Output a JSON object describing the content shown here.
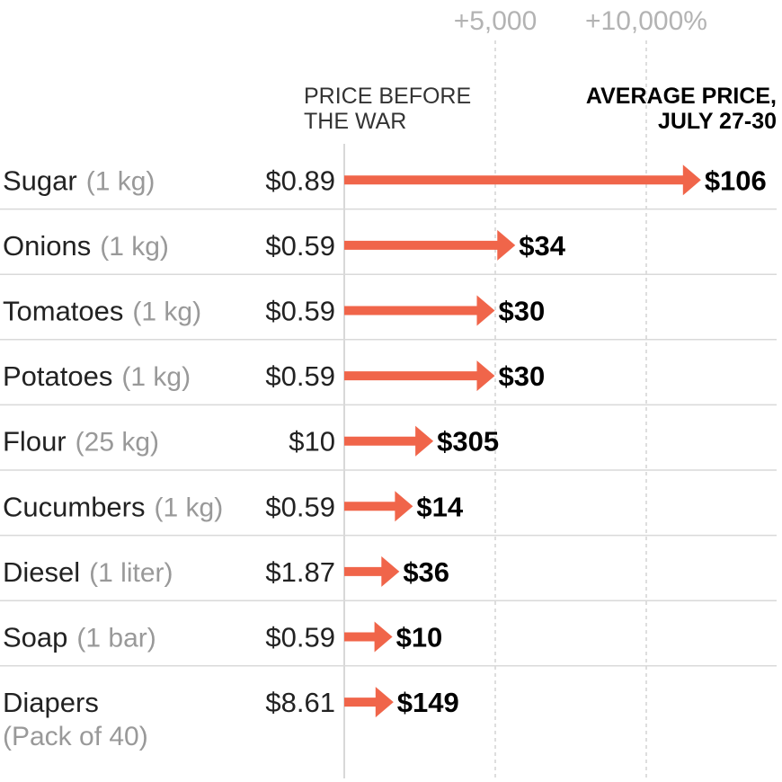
{
  "chart_data": {
    "type": "arrow",
    "title": "",
    "axis": {
      "unit": "percent increase",
      "range": [
        0,
        12000
      ],
      "ticks": [
        {
          "value": 5000,
          "label": "+5,000"
        },
        {
          "value": 10000,
          "label": "+10,000%"
        }
      ]
    },
    "headers": {
      "before": [
        "PRICE BEFORE",
        "THE WAR"
      ],
      "after": [
        "AVERAGE PRICE,",
        "JULY 27-30"
      ]
    },
    "arrow_color": "#f0654a",
    "items": [
      {
        "name": "Sugar",
        "unit": "(1 kg)",
        "before": "$0.89",
        "after": "$106",
        "increase_pct": 11810
      },
      {
        "name": "Onions",
        "unit": "(1 kg)",
        "before": "$0.59",
        "after": "$34",
        "increase_pct": 5663
      },
      {
        "name": "Tomatoes",
        "unit": "(1 kg)",
        "before": "$0.59",
        "after": "$30",
        "increase_pct": 4985
      },
      {
        "name": "Potatoes",
        "unit": "(1 kg)",
        "before": "$0.59",
        "after": "$30",
        "increase_pct": 4985
      },
      {
        "name": "Flour",
        "unit": "(25 kg)",
        "before": "$10",
        "after": "$305",
        "increase_pct": 2950
      },
      {
        "name": "Cucumbers",
        "unit": "(1 kg)",
        "before": "$0.59",
        "after": "$14",
        "increase_pct": 2273
      },
      {
        "name": "Diesel",
        "unit": "(1 liter)",
        "before": "$1.87",
        "after": "$36",
        "increase_pct": 1825
      },
      {
        "name": "Soap",
        "unit": "(1 bar)",
        "before": "$0.59",
        "after": "$10",
        "increase_pct": 1595
      },
      {
        "name": "Diapers",
        "unit": "(Pack of 40)",
        "before": "$8.61",
        "after": "$149",
        "increase_pct": 1631
      }
    ]
  }
}
